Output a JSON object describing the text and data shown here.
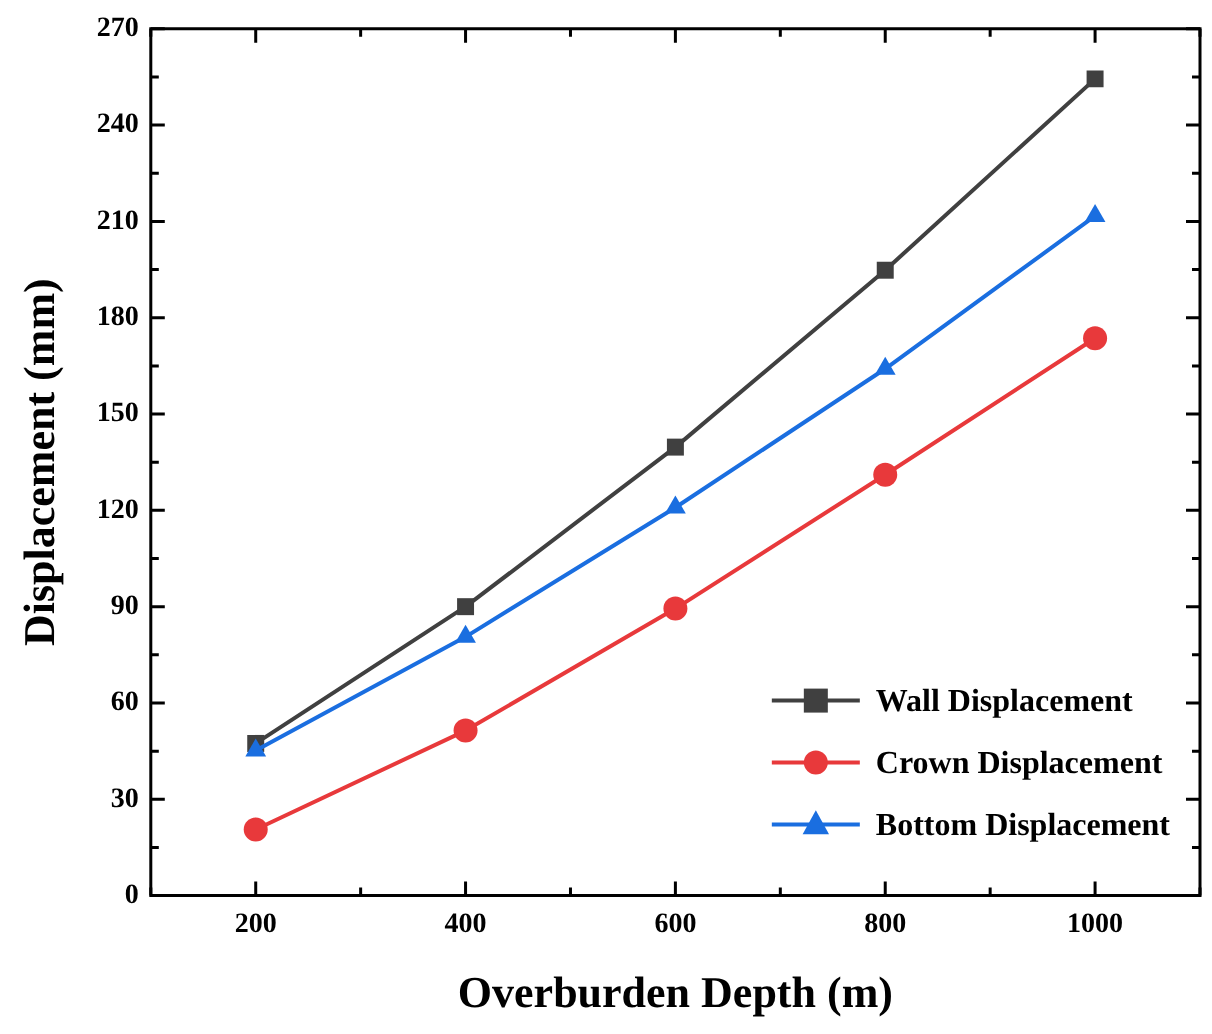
{
  "chart_data": {
    "type": "line",
    "xlabel": "Overburden Depth (m)",
    "ylabel": "Displacement (mm)",
    "x": [
      200,
      400,
      600,
      800,
      1000
    ],
    "xlim": [
      100,
      1100
    ],
    "xticks": [
      {
        "value": 100,
        "label": null
      },
      200,
      {
        "value": 300,
        "label": null
      },
      400,
      {
        "value": 500,
        "label": null
      },
      600,
      {
        "value": 700,
        "label": null
      },
      800,
      {
        "value": 900,
        "label": null
      },
      1000,
      {
        "value": 1100,
        "label": null
      }
    ],
    "ylim": [
      0,
      270
    ],
    "yticks": [
      0,
      {
        "value": 15,
        "label": null
      },
      30,
      {
        "value": 45,
        "label": null
      },
      60,
      {
        "value": 75,
        "label": null
      },
      90,
      {
        "value": 105,
        "label": null
      },
      120,
      {
        "value": 135,
        "label": null
      },
      150,
      {
        "value": 165,
        "label": null
      },
      180,
      {
        "value": 195,
        "label": null
      },
      210,
      {
        "value": 225,
        "label": null
      },
      240,
      {
        "value": 255,
        "label": null
      },
      270
    ],
    "grid": false,
    "legend": "bottom right",
    "line_style": "solid",
    "series": [
      {
        "name": "Wall Displacement",
        "color": "#404040",
        "marker": "square",
        "values": [
          47.4,
          90,
          139.7,
          194.8,
          254.4
        ]
      },
      {
        "name": "Crown Displacement",
        "color": "#e8393b",
        "marker": "circle",
        "values": [
          20.6,
          51.4,
          89.4,
          131.1,
          173.6
        ]
      },
      {
        "name": "Bottom Displacement",
        "color": "#1a6ee0",
        "marker": "triangle",
        "values": [
          45.2,
          80.6,
          120.9,
          164.1,
          211.7
        ]
      }
    ]
  }
}
